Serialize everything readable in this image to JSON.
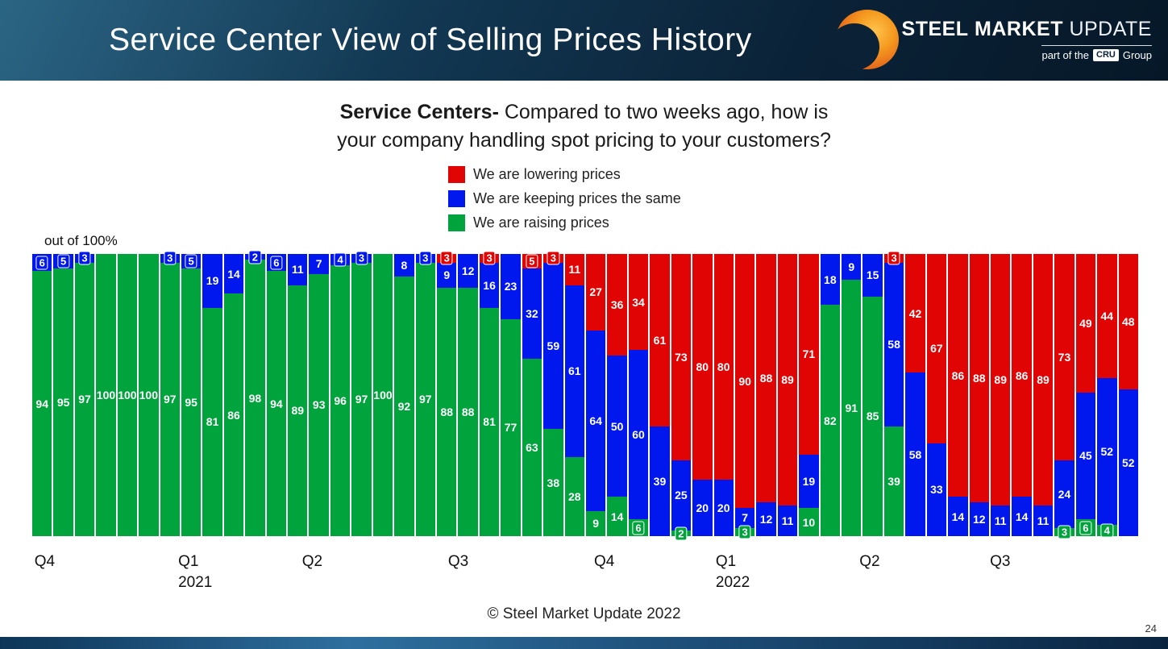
{
  "header": {
    "title": "Service Center View of Selling Prices History",
    "logo": {
      "word1": "STEEL",
      "word2": "MARKET",
      "word3": "UPDATE",
      "tagline_pre": "part of the",
      "tagline_cru": "CRU",
      "tagline_post": "Group"
    }
  },
  "chart": {
    "title_bold": "Service Centers-",
    "title_rest": " Compared to two weeks ago, how is",
    "title_line2": "your company handling spot pricing to your customers?",
    "axis_note": "out of 100%",
    "legend": [
      {
        "key": "lowering",
        "label": "We are lowering prices",
        "color": "#e00404"
      },
      {
        "key": "same",
        "label": "We are keeping prices the same",
        "color": "#0018ee"
      },
      {
        "key": "raising",
        "label": "We are raising prices",
        "color": "#00a33c"
      }
    ]
  },
  "chart_data": {
    "type": "bar",
    "stacked": true,
    "unit": "percent of respondents",
    "ylim": [
      0,
      100
    ],
    "n_bars": 52,
    "series_order_bottom_to_top": [
      "raising",
      "same",
      "lowering"
    ],
    "series": [
      {
        "key": "raising",
        "name": "We are raising prices",
        "color": "#00a33c",
        "values": [
          94,
          95,
          97,
          100,
          100,
          100,
          97,
          95,
          81,
          86,
          98,
          94,
          89,
          93,
          96,
          97,
          100,
          92,
          97,
          88,
          88,
          81,
          77,
          63,
          38,
          28,
          9,
          14,
          6,
          0,
          2,
          0,
          0,
          3,
          0,
          0,
          10,
          82,
          91,
          85,
          39,
          0,
          0,
          0,
          0,
          0,
          0,
          0,
          3,
          6,
          4,
          0
        ]
      },
      {
        "key": "same",
        "name": "We are keeping prices the same",
        "color": "#0018ee",
        "values": [
          6,
          5,
          3,
          0,
          0,
          0,
          3,
          5,
          19,
          14,
          2,
          6,
          11,
          7,
          4,
          3,
          0,
          8,
          3,
          9,
          12,
          16,
          23,
          32,
          59,
          61,
          64,
          50,
          60,
          39,
          25,
          20,
          20,
          7,
          12,
          11,
          19,
          18,
          9,
          15,
          58,
          58,
          33,
          14,
          12,
          11,
          14,
          11,
          24,
          45,
          52,
          52
        ]
      },
      {
        "key": "lowering",
        "name": "We are lowering prices",
        "color": "#e00404",
        "values": [
          0,
          0,
          0,
          0,
          0,
          0,
          0,
          0,
          0,
          0,
          0,
          0,
          0,
          0,
          0,
          0,
          0,
          0,
          0,
          3,
          0,
          3,
          0,
          5,
          3,
          11,
          27,
          36,
          34,
          61,
          73,
          80,
          80,
          90,
          88,
          89,
          71,
          0,
          0,
          0,
          3,
          42,
          67,
          86,
          88,
          89,
          86,
          89,
          73,
          49,
          44,
          48
        ]
      }
    ],
    "x_axis_quarters": [
      {
        "label": "Q4",
        "year": "",
        "pos": 0.002
      },
      {
        "label": "Q1",
        "year": "2021",
        "pos": 0.132
      },
      {
        "label": "Q2",
        "year": "",
        "pos": 0.244
      },
      {
        "label": "Q3",
        "year": "",
        "pos": 0.376
      },
      {
        "label": "Q4",
        "year": "",
        "pos": 0.508
      },
      {
        "label": "Q1",
        "year": "2022",
        "pos": 0.618
      },
      {
        "label": "Q2",
        "year": "",
        "pos": 0.748
      },
      {
        "label": "Q3",
        "year": "",
        "pos": 0.866
      }
    ]
  },
  "footer": {
    "copyright": "© Steel Market Update 2022",
    "page_number": "24"
  }
}
